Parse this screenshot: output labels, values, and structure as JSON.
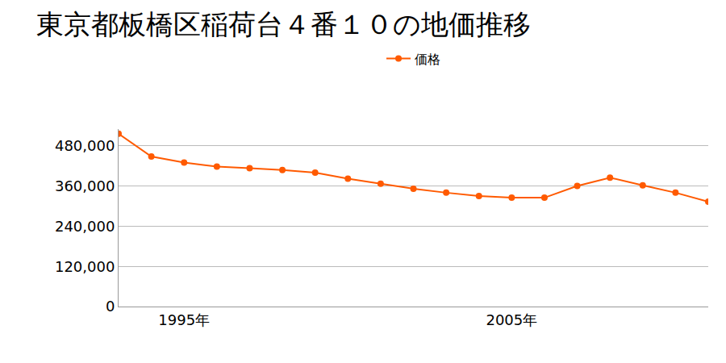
{
  "chart_data": {
    "type": "line",
    "title": "東京都板橋区稲荷台４番１０の地価推移",
    "x": [
      1993,
      1994,
      1995,
      1996,
      1997,
      1998,
      1999,
      2000,
      2001,
      2002,
      2003,
      2004,
      2005,
      2006,
      2007,
      2008,
      2009,
      2010,
      2011
    ],
    "series": [
      {
        "name": "価格",
        "color": "#ff5a00",
        "values": [
          516000,
          448000,
          430000,
          418000,
          413000,
          408000,
          400000,
          382000,
          367000,
          352000,
          340000,
          330000,
          325000,
          325000,
          360000,
          385000,
          362000,
          340000,
          313000
        ]
      }
    ],
    "xlim": [
      1993,
      2011
    ],
    "xticks": [
      {
        "value": 1995,
        "label": "1995年"
      },
      {
        "value": 2005,
        "label": "2005年"
      }
    ],
    "ylim": [
      0,
      530000
    ],
    "yticks": [
      0,
      {
        "value": 120000,
        "label": "120,000"
      },
      {
        "value": 240000,
        "label": "240,000"
      },
      {
        "value": 360000,
        "label": "360,000"
      },
      {
        "value": 480000,
        "label": "480,000"
      }
    ],
    "grid": true,
    "legend": "top",
    "marker": "circle",
    "line_style": "solid"
  }
}
